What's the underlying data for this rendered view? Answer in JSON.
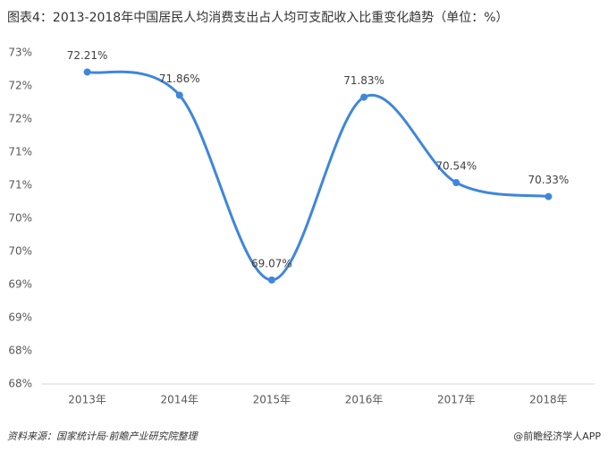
{
  "chart_data": {
    "type": "line",
    "title": "图表4：2013-2018年中国居民人均消费支出占人均可支配收入比重变化趋势（单位：%）",
    "source": "资料来源：国家统计局·前瞻产业研究院整理",
    "brand": "@前瞻经济学人APP",
    "categories": [
      "2013年",
      "2014年",
      "2015年",
      "2016年",
      "2017年",
      "2018年"
    ],
    "values": [
      72.21,
      71.86,
      69.07,
      71.83,
      70.54,
      70.33
    ],
    "value_labels": [
      "72.21%",
      "71.86%",
      "69.07%",
      "71.83%",
      "70.54%",
      "70.33%"
    ],
    "color": "#3f86dc",
    "ylim": [
      67.5,
      72.5
    ],
    "yticks": [
      {
        "value": 67.5,
        "label": "68%"
      },
      {
        "value": 68,
        "label": "68%"
      },
      {
        "value": 68.5,
        "label": "69%"
      },
      {
        "value": 69,
        "label": "69%"
      },
      {
        "value": 69.5,
        "label": "70%"
      },
      {
        "value": 70,
        "label": "70%"
      },
      {
        "value": 70.5,
        "label": "71%"
      },
      {
        "value": 71,
        "label": "71%"
      },
      {
        "value": 71.5,
        "label": "72%"
      },
      {
        "value": 72,
        "label": "72%"
      },
      {
        "value": 72.5,
        "label": "73%"
      }
    ],
    "grid": false
  }
}
